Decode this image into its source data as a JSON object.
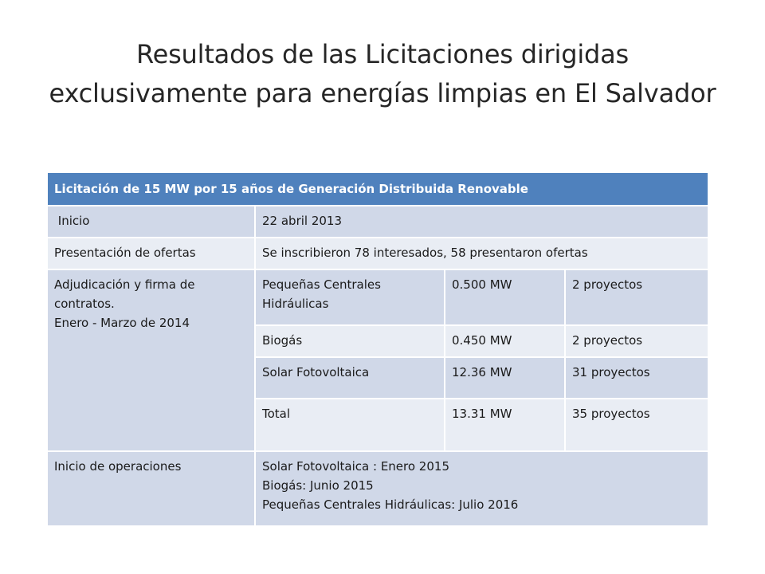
{
  "title": {
    "line1": "Resultados de las Licitaciones dirigidas",
    "line2": "exclusivamente para energías limpias en El Salvador"
  },
  "table": {
    "header": "Licitación de 15 MW por 15 años de Generación Distribuida Renovable",
    "inicio": {
      "label": " Inicio",
      "value": "22 abril 2013"
    },
    "presentacion": {
      "label": "Presentación de ofertas",
      "value": "Se inscribieron 78 interesados, 58 presentaron ofertas"
    },
    "adjudicacion": {
      "label_lines": [
        "Adjudicación y firma de",
        "contratos.",
        "Enero - Marzo de 2014"
      ],
      "rows": [
        {
          "tech_lines": [
            "Pequeñas Centrales",
            "Hidráulicas"
          ],
          "mw": "0.500 MW",
          "projects": "2 proyectos"
        },
        {
          "tech_lines": [
            "Biogás"
          ],
          "mw": "0.450 MW",
          "projects": "2 proyectos"
        },
        {
          "tech_lines": [
            "Solar Fotovoltaica"
          ],
          "mw": "12.36 MW",
          "projects": "31 proyectos"
        },
        {
          "tech_lines": [
            "Total"
          ],
          "mw": "13.31 MW",
          "projects": "35 proyectos"
        }
      ]
    },
    "operaciones": {
      "label": "Inicio de operaciones",
      "lines": [
        "Solar Fotovoltaica : Enero 2015",
        "Biogás: Junio 2015",
        "Pequeñas Centrales Hidráulicas: Julio 2016"
      ]
    }
  },
  "colors": {
    "header_bg": "#4f81bd",
    "row_odd": "#d0d8e8",
    "row_even": "#e9edf4"
  }
}
